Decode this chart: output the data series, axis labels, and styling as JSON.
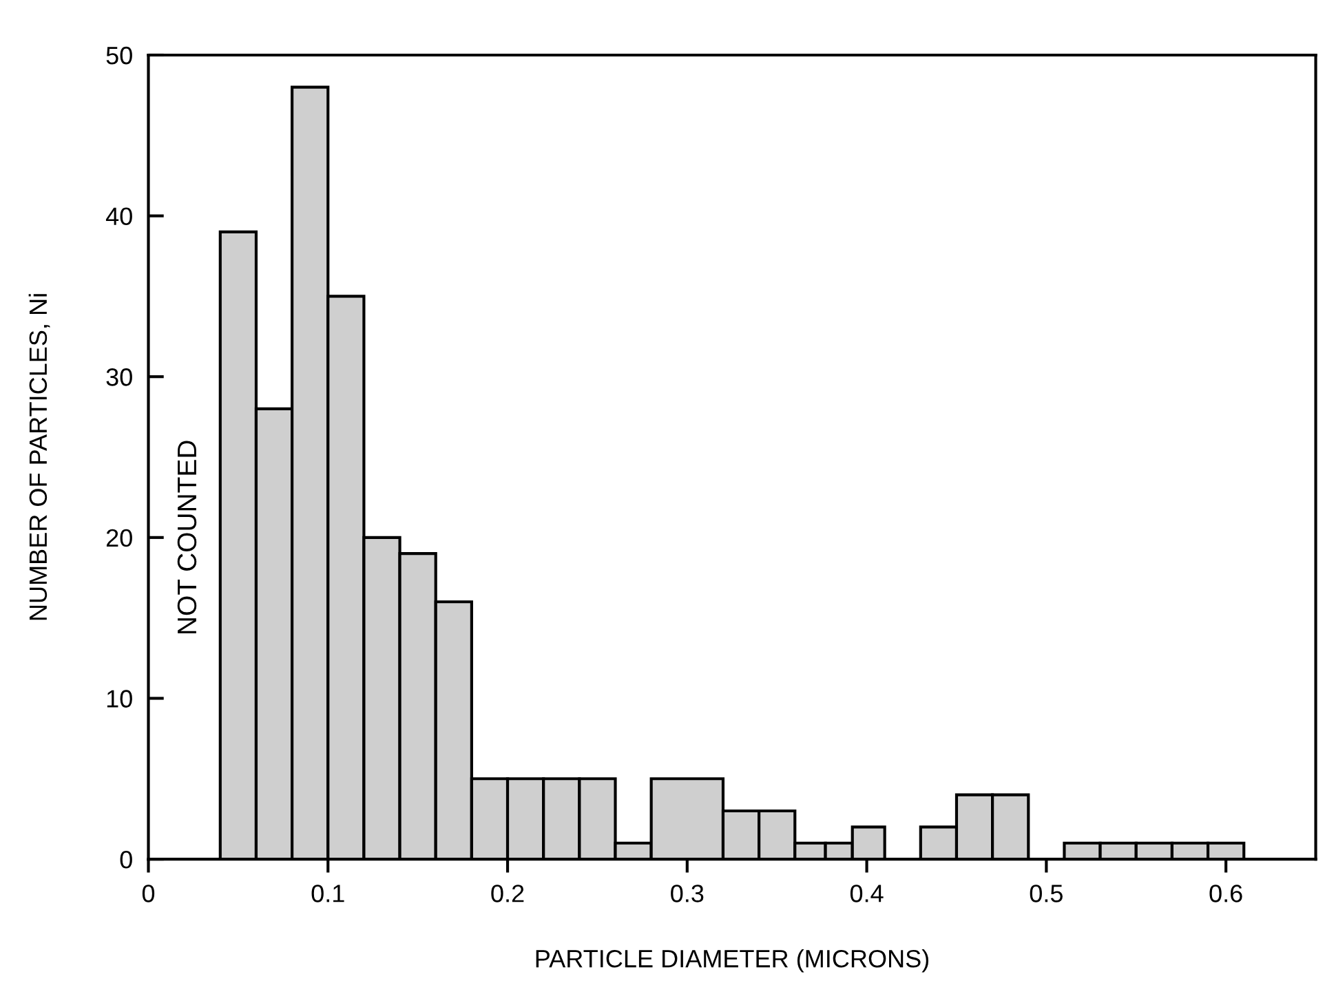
{
  "chart_data": {
    "type": "histogram",
    "xlabel": "PARTICLE DIAMETER (MICRONS)",
    "ylabel": "NUMBER OF PARTICLES, Ni",
    "bins": [
      0.04,
      0.06,
      0.08,
      0.1,
      0.12,
      0.14,
      0.16,
      0.18,
      0.2,
      0.22,
      0.24,
      0.26,
      0.28,
      0.32,
      0.34,
      0.36,
      0.377,
      0.392,
      0.41,
      0.43,
      0.45,
      0.47,
      0.49,
      0.51,
      0.53,
      0.55,
      0.57,
      0.59,
      0.61
    ],
    "values": [
      39,
      28,
      48,
      35,
      20,
      19,
      16,
      5,
      5,
      5,
      5,
      1,
      5,
      3,
      3,
      1,
      1,
      2,
      0,
      2,
      4,
      4,
      0,
      1,
      1,
      1,
      1,
      1
    ],
    "color": "#cfcfcf",
    "xlim": [
      0,
      0.65
    ],
    "xticks": [
      0,
      0.1,
      0.2,
      0.3,
      0.4,
      0.5,
      0.6
    ],
    "ylim": [
      0,
      50
    ],
    "yticks": [
      0,
      10,
      20,
      30,
      40,
      50
    ],
    "grid": false,
    "annotations": [
      "NOT COUNTED"
    ]
  }
}
